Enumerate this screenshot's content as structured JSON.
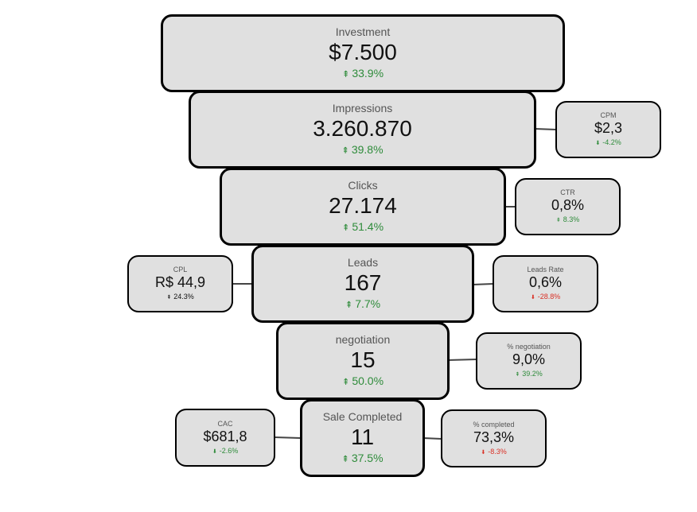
{
  "stages": [
    {
      "label": "Investment",
      "value": "$7.500",
      "arrow": "⇞",
      "change": "33.9%"
    },
    {
      "label": "Impressions",
      "value": "3.260.870",
      "arrow": "⇞",
      "change": "39.8%"
    },
    {
      "label": "Clicks",
      "value": "27.174",
      "arrow": "⇞",
      "change": "51.4%"
    },
    {
      "label": "Leads",
      "value": "167",
      "arrow": "⇞",
      "change": "7.7%"
    },
    {
      "label": "negotiation",
      "value": "15",
      "arrow": "⇞",
      "change": "50.0%"
    },
    {
      "label": "Sale Completed",
      "value": "11",
      "arrow": "⇞",
      "change": "37.5%"
    }
  ],
  "metrics": {
    "cpm": {
      "label": "CPM",
      "value": "$2,3",
      "arrow": "⬇",
      "change": "-4.2%"
    },
    "ctr": {
      "label": "CTR",
      "value": "0,8%",
      "arrow": "⇞",
      "change": "8.3%"
    },
    "cpl": {
      "label": "CPL",
      "value": "R$ 44,9",
      "arrow": "⇞",
      "change": "24.3%"
    },
    "leads_rate": {
      "label": "Leads Rate",
      "value": "0,6%",
      "arrow": "⬇",
      "change": "-28.8%"
    },
    "pct_negotiation": {
      "label": "% negotiation",
      "value": "9,0%",
      "arrow": "⇞",
      "change": "39.2%"
    },
    "cac": {
      "label": "CAC",
      "value": "$681,8",
      "arrow": "⬇",
      "change": "-2.6%"
    },
    "pct_completed": {
      "label": "% completed",
      "value": "73,3%",
      "arrow": "⬇",
      "change": "-8.3%"
    }
  },
  "colors": {
    "positive": "#2e8b3a",
    "negative": "#d93025",
    "box_fill": "#e0e0e0",
    "border": "#000000"
  }
}
